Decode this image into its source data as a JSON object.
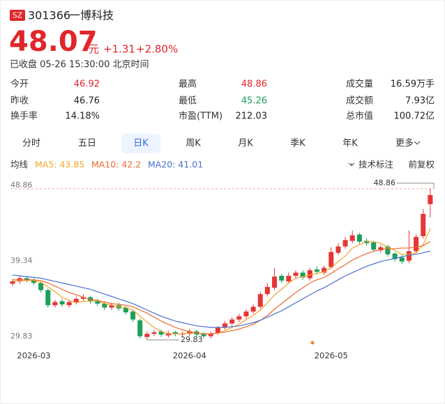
{
  "header": {
    "market": "SZ",
    "code": "301366",
    "name": "一博科技",
    "price": "48.07",
    "unit": "元",
    "change": "+1.31",
    "change_pct": "+2.80%",
    "status": "已收盘 05-26 15:30:00 北京时间"
  },
  "stats": [
    [
      {
        "label": "今开",
        "value": "46.92",
        "color": "#e0262b"
      },
      {
        "label": "最高",
        "value": "48.86",
        "color": "#e0262b"
      },
      {
        "label": "成交量",
        "value": "16.59万手",
        "color": "#222222"
      }
    ],
    [
      {
        "label": "昨收",
        "value": "46.76",
        "color": "#222222"
      },
      {
        "label": "最低",
        "value": "45.26",
        "color": "#1e9e5a"
      },
      {
        "label": "成交额",
        "value": "7.93亿",
        "color": "#222222"
      }
    ],
    [
      {
        "label": "换手率",
        "value": "14.18%",
        "color": "#222222"
      },
      {
        "label": "市盈(TTM)",
        "value": "212.03",
        "color": "#222222"
      },
      {
        "label": "总市值",
        "value": "100.72亿",
        "color": "#222222"
      }
    ]
  ],
  "tabs": {
    "items": [
      "分时",
      "五日",
      "日K",
      "周K",
      "月K",
      "季K",
      "年K",
      "更多"
    ],
    "selected": 2
  },
  "indicator_bar": {
    "label": "均线",
    "tools": [
      "技术标注",
      "前复权"
    ]
  },
  "chart_data": {
    "type": "candlestick",
    "categories": [
      null,
      null,
      null,
      "2026-03",
      null,
      null,
      null,
      null,
      null,
      null,
      null,
      null,
      null,
      null,
      null,
      null,
      null,
      null,
      null,
      null,
      null,
      null,
      null,
      null,
      null,
      "2026-04",
      null,
      null,
      null,
      null,
      null,
      null,
      null,
      null,
      null,
      null,
      null,
      null,
      null,
      null,
      null,
      null,
      null,
      null,
      null,
      "2026-05",
      null,
      null,
      null,
      null,
      null,
      null,
      null,
      null,
      null,
      null,
      null,
      null,
      null,
      null
    ],
    "open": [
      36.9,
      37.2,
      37.6,
      37.4,
      37.0,
      36.1,
      34.2,
      34.7,
      34.2,
      34.6,
      35.0,
      35.2,
      34.7,
      34.4,
      33.9,
      34.2,
      33.9,
      33.4,
      32.3,
      30.2,
      30.6,
      30.9,
      30.4,
      30.8,
      30.5,
      30.6,
      30.9,
      30.6,
      30.3,
      30.7,
      31.4,
      31.9,
      32.4,
      32.8,
      33.4,
      34.0,
      35.6,
      36.4,
      37.9,
      37.2,
      37.9,
      38.3,
      37.6,
      38.7,
      38.3,
      39.0,
      40.8,
      41.6,
      42.3,
      43.1,
      42.3,
      42.1,
      41.1,
      41.6,
      40.7,
      40.2,
      39.8,
      41.0,
      42.9,
      46.92
    ],
    "high": [
      37.5,
      37.9,
      37.9,
      37.6,
      37.2,
      36.3,
      34.9,
      35.0,
      34.9,
      35.3,
      35.6,
      35.4,
      35.0,
      34.7,
      34.5,
      34.5,
      34.1,
      33.6,
      32.5,
      30.9,
      31.1,
      31.1,
      31.0,
      31.0,
      30.9,
      31.2,
      31.1,
      30.8,
      30.9,
      31.6,
      32.2,
      32.7,
      33.1,
      33.7,
      34.3,
      35.9,
      37.0,
      38.9,
      38.2,
      38.3,
      38.6,
      38.6,
      38.9,
      39.1,
      39.2,
      41.5,
      42.0,
      42.8,
      43.6,
      43.3,
      42.6,
      42.3,
      41.8,
      41.8,
      40.9,
      40.5,
      43.6,
      43.1,
      46.3,
      48.86
    ],
    "low": [
      36.6,
      36.9,
      37.1,
      36.7,
      35.8,
      33.9,
      33.9,
      34.0,
      33.9,
      34.3,
      34.7,
      34.4,
      34.1,
      33.6,
      33.6,
      33.5,
      33.0,
      32.1,
      30.0,
      29.83,
      30.3,
      30.2,
      30.1,
      30.3,
      30.2,
      30.3,
      30.2,
      30.0,
      30.0,
      30.5,
      31.1,
      31.6,
      32.1,
      32.5,
      33.1,
      33.8,
      35.3,
      36.1,
      37.0,
      36.9,
      37.5,
      37.4,
      37.3,
      38.1,
      38.0,
      38.8,
      40.5,
      41.3,
      42.0,
      41.9,
      41.7,
      40.9,
      40.8,
      40.3,
      39.7,
      39.4,
      39.5,
      40.7,
      42.6,
      45.26
    ],
    "close": [
      37.2,
      37.6,
      37.4,
      37.0,
      36.1,
      34.2,
      34.6,
      34.3,
      34.6,
      35.0,
      35.2,
      34.7,
      34.4,
      33.9,
      34.2,
      33.8,
      33.3,
      32.4,
      30.3,
      30.6,
      30.8,
      30.5,
      30.7,
      30.6,
      30.6,
      30.9,
      30.5,
      30.3,
      30.6,
      31.4,
      31.9,
      32.4,
      32.8,
      33.4,
      34.0,
      35.6,
      36.5,
      37.8,
      37.3,
      37.9,
      38.3,
      37.7,
      38.6,
      38.4,
      38.9,
      40.9,
      41.6,
      42.4,
      43.0,
      42.2,
      42.0,
      41.2,
      41.5,
      40.6,
      40.0,
      39.7,
      41.0,
      42.8,
      45.7,
      48.07
    ],
    "up_color": "#e63535",
    "down_color": "#1e9e5a",
    "series": [
      {
        "name": "MA5: 43.85",
        "color": "#f0a52a",
        "values": [
          37.2,
          37.3,
          37.3,
          37.3,
          37.1,
          36.5,
          35.9,
          35.2,
          34.8,
          34.5,
          34.7,
          34.7,
          34.8,
          34.4,
          34.2,
          34.0,
          33.9,
          33.6,
          32.8,
          32.1,
          31.4,
          30.9,
          30.6,
          30.6,
          30.6,
          30.7,
          30.7,
          30.6,
          30.6,
          30.7,
          31.0,
          31.4,
          31.8,
          32.4,
          32.9,
          33.6,
          34.5,
          35.5,
          36.2,
          37.0,
          37.6,
          37.8,
          38.0,
          38.2,
          38.4,
          38.9,
          39.7,
          40.4,
          41.4,
          41.8,
          42.2,
          42.2,
          42.0,
          41.5,
          41.1,
          40.6,
          40.6,
          40.8,
          41.8,
          43.85
        ]
      },
      {
        "name": "MA10: 42.2",
        "color": "#ea6a2c",
        "values": [
          37.4,
          37.4,
          37.4,
          37.4,
          37.3,
          37.0,
          36.6,
          36.2,
          35.8,
          35.5,
          35.2,
          34.9,
          34.8,
          34.6,
          34.4,
          34.3,
          34.2,
          34.0,
          33.6,
          33.2,
          32.7,
          32.2,
          31.8,
          31.4,
          31.1,
          30.9,
          30.7,
          30.6,
          30.6,
          30.7,
          30.8,
          31.0,
          31.2,
          31.5,
          31.8,
          32.3,
          32.9,
          33.7,
          34.4,
          35.1,
          35.8,
          36.4,
          37.0,
          37.4,
          37.7,
          38.2,
          38.8,
          39.3,
          39.9,
          40.3,
          40.7,
          41.0,
          41.2,
          41.3,
          41.3,
          41.4,
          41.4,
          41.5,
          41.7,
          42.2
        ]
      },
      {
        "name": "MA20: 41.01",
        "color": "#4a6fd0",
        "values": [
          38.0,
          37.9,
          37.8,
          37.7,
          37.6,
          37.4,
          37.2,
          37.0,
          36.8,
          36.6,
          36.4,
          36.2,
          35.9,
          35.6,
          35.3,
          35.0,
          34.7,
          34.4,
          34.0,
          33.6,
          33.2,
          32.8,
          32.5,
          32.2,
          32.0,
          31.8,
          31.6,
          31.5,
          31.4,
          31.4,
          31.4,
          31.5,
          31.6,
          31.8,
          32.0,
          32.3,
          32.7,
          33.1,
          33.5,
          34.0,
          34.5,
          35.0,
          35.5,
          36.0,
          36.4,
          36.9,
          37.4,
          37.9,
          38.3,
          38.7,
          39.1,
          39.4,
          39.7,
          39.9,
          40.1,
          40.3,
          40.5,
          40.6,
          40.8,
          41.01
        ]
      }
    ],
    "ylim": [
      29.83,
      48.86
    ],
    "yticks": [
      29.83,
      39.34,
      48.86
    ],
    "grid": false
  }
}
